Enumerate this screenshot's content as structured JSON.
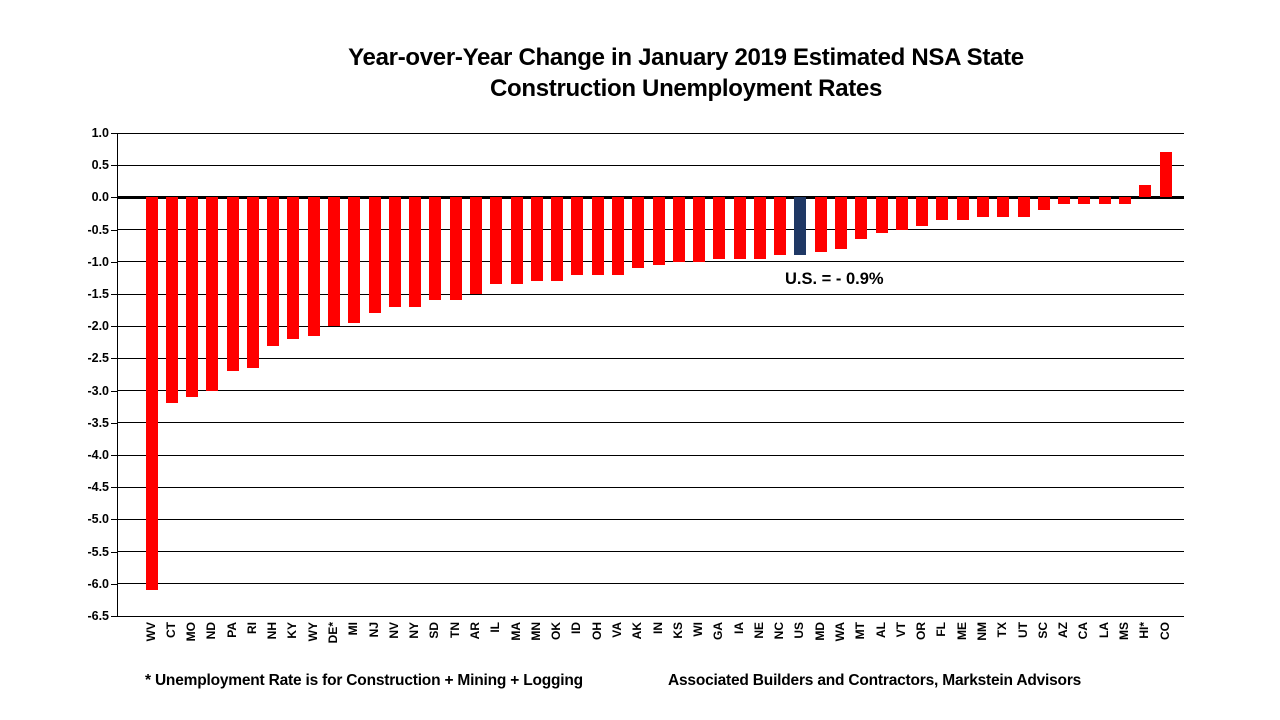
{
  "title": {
    "line1": "Year-over-Year Change in January 2019 Estimated NSA State",
    "line2": "Construction Unemployment Rates"
  },
  "annotation": {
    "us_label": "U.S. = - 0.9%"
  },
  "footer": {
    "note": "* Unemployment Rate is for Construction + Mining + Logging",
    "source": "Associated Builders and Contractors, Markstein Advisors"
  },
  "colors": {
    "bar": "#FF0000",
    "us_bar": "#1F3864",
    "axis": "#000000",
    "background": "#FFFFFF"
  },
  "chart_data": {
    "type": "bar",
    "title": "Year-over-Year Change in January 2019 Estimated NSA State Construction Unemployment Rates",
    "categories": [
      "WV",
      "CT",
      "MO",
      "ND",
      "PA",
      "RI",
      "NH",
      "KY",
      "WY",
      "DE*",
      "MI",
      "NJ",
      "NV",
      "NY",
      "SD",
      "TN",
      "AR",
      "IL",
      "MA",
      "MN",
      "OK",
      "ID",
      "OH",
      "VA",
      "AK",
      "IN",
      "KS",
      "WI",
      "GA",
      "IA",
      "NE",
      "NC",
      "US",
      "MD",
      "WA",
      "MT",
      "AL",
      "VT",
      "OR",
      "FL",
      "ME",
      "NM",
      "TX",
      "UT",
      "SC",
      "AZ",
      "CA",
      "LA",
      "MS",
      "HI*",
      "CO"
    ],
    "values": [
      -6.1,
      -3.2,
      -3.1,
      -3.0,
      -2.7,
      -2.65,
      -2.3,
      -2.2,
      -2.15,
      -2.0,
      -1.95,
      -1.8,
      -1.7,
      -1.7,
      -1.6,
      -1.6,
      -1.5,
      -1.35,
      -1.35,
      -1.3,
      -1.3,
      -1.2,
      -1.2,
      -1.2,
      -1.1,
      -1.05,
      -1.0,
      -1.0,
      -0.95,
      -0.95,
      -0.95,
      -0.9,
      -0.9,
      -0.85,
      -0.8,
      -0.65,
      -0.55,
      -0.5,
      -0.45,
      -0.35,
      -0.35,
      -0.3,
      -0.3,
      -0.3,
      -0.2,
      -0.1,
      -0.1,
      -0.1,
      -0.1,
      0.2,
      0.7
    ],
    "highlight_category": "US",
    "highlight_index": 32,
    "xlabel": "",
    "ylabel": "",
    "ylim": [
      -6.5,
      1.0
    ],
    "ytick_step": 0.5,
    "yticks": [
      "1.0",
      "0.5",
      "0.0",
      "-0.5",
      "-1.0",
      "-1.5",
      "-2.0",
      "-2.5",
      "-3.0",
      "-3.5",
      "-4.0",
      "-4.5",
      "-5.0",
      "-5.5",
      "-6.0",
      "-6.5"
    ],
    "grid": true,
    "legend": "none"
  }
}
